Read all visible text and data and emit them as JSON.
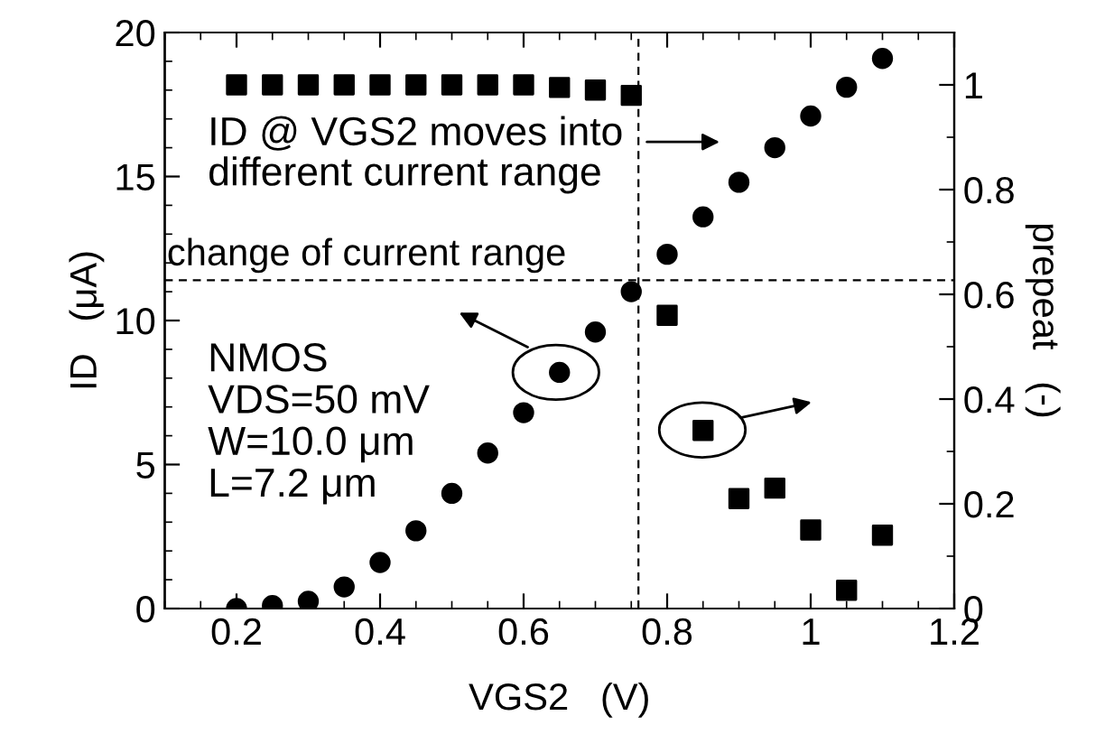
{
  "chart_data": {
    "type": "scatter",
    "xlabel": "VGS2   (V)",
    "ylabel": "ID   (μA)",
    "y2label": "prepeat   (-)",
    "xlim": [
      0.1,
      1.2
    ],
    "xticks": [
      0.2,
      0.4,
      0.6,
      0.8,
      {
        "value": 1.0,
        "label": "1"
      },
      1.2
    ],
    "ylim": [
      0,
      20
    ],
    "yticks": [
      0,
      5,
      10,
      15,
      20
    ],
    "y2lim": [
      0,
      1.1
    ],
    "y2ticks": [
      0,
      0.2,
      0.4,
      0.6,
      0.8,
      {
        "value": 1.0,
        "label": "1"
      }
    ],
    "grid": false,
    "legend": false,
    "series": [
      {
        "color": "#000000",
        "marker": "circle",
        "x": [
          0.2,
          0.25,
          0.3,
          0.35,
          0.4,
          0.45,
          0.5,
          0.55,
          0.6,
          0.65,
          0.7,
          0.75,
          0.8,
          0.85,
          0.9,
          0.95,
          1.0,
          1.05,
          1.1
        ],
        "values": [
          0,
          0.1,
          0.25,
          0.75,
          1.6,
          2.7,
          4.0,
          5.4,
          6.8,
          8.2,
          9.6,
          11.0,
          12.3,
          13.6,
          14.8,
          16.0,
          17.1,
          18.1,
          19.1
        ]
      },
      {
        "color": "#000000",
        "marker": "square",
        "axis": "y2",
        "x": [
          0.2,
          0.25,
          0.3,
          0.35,
          0.4,
          0.45,
          0.5,
          0.55,
          0.6,
          0.65,
          0.7,
          0.75,
          0.8,
          0.85,
          0.9,
          0.95,
          1.0,
          1.05,
          1.1
        ],
        "values": [
          1.0,
          1.0,
          1.0,
          1.0,
          1.0,
          1.0,
          1.0,
          1.0,
          1.0,
          0.995,
          0.99,
          0.98,
          0.56,
          0.34,
          0.21,
          0.23,
          0.15,
          0.035,
          0.14
        ]
      }
    ],
    "ref_lines": [
      {
        "axis": "x",
        "value": 0.76,
        "line_style": "dashed",
        "color": "#000000"
      },
      {
        "axis": "y",
        "value": 11.4,
        "label": "change of current range",
        "line_style": "dashed",
        "color": "#000000"
      }
    ],
    "annotations": [
      "ID @ VGS2 moves into\ndifferent current range",
      "NMOS\nVDS=50 mV\nW=10.0 μm\nL=7.2 μm"
    ]
  }
}
